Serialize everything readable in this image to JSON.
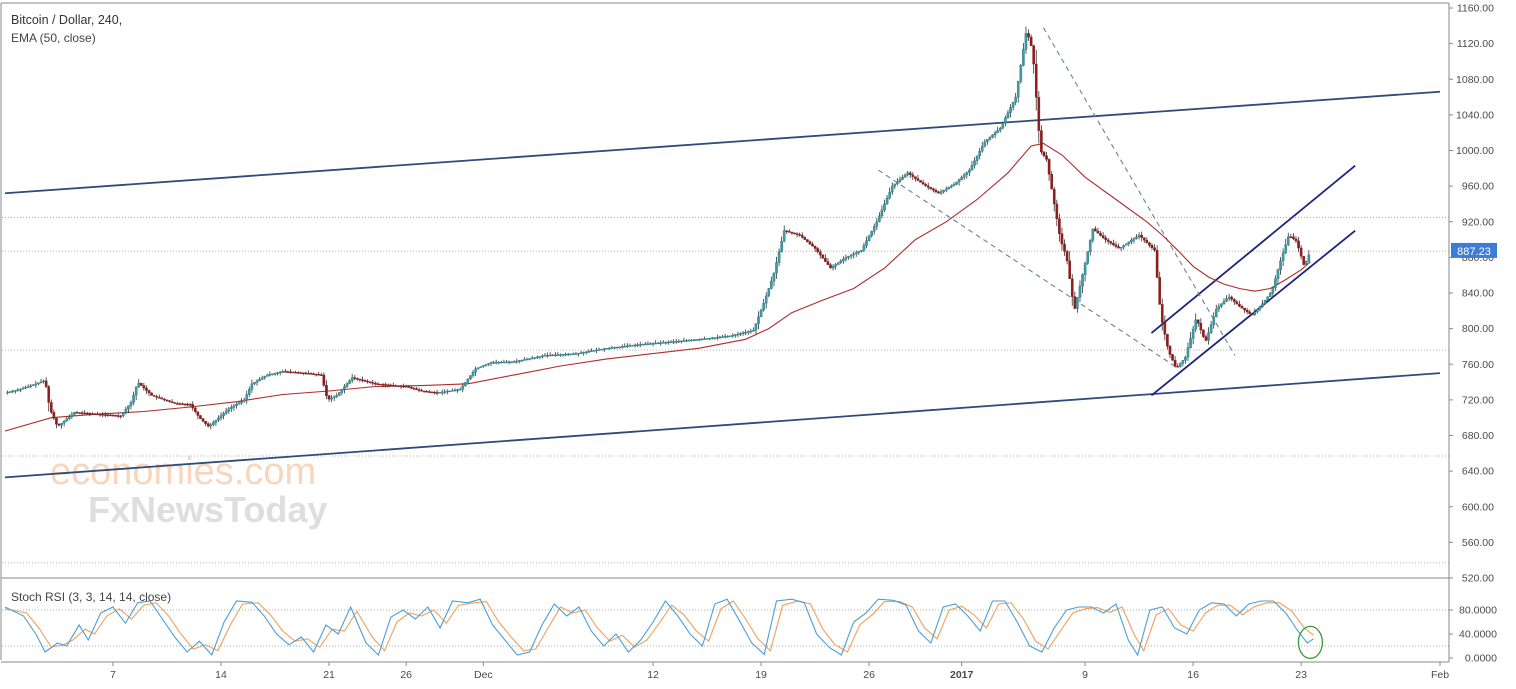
{
  "chart_data": {
    "type": "candlestick",
    "title": "Bitcoin / Dollar, 240,",
    "indicator_label": "EMA (50, close)",
    "price_axis": {
      "ticks": [
        "1160.00",
        "1120.00",
        "1080.00",
        "1040.00",
        "1000.00",
        "960.00",
        "920.00",
        "880.00",
        "840.00",
        "800.00",
        "760.00",
        "720.00",
        "680.00",
        "640.00",
        "600.00",
        "560.00",
        "520.00"
      ],
      "range": [
        520,
        1160
      ],
      "current_price_label": "887.23",
      "current_price": 887.23
    },
    "x_ticks": [
      {
        "label": "7",
        "day": 7
      },
      {
        "label": "14",
        "day": 14
      },
      {
        "label": "21",
        "day": 21
      },
      {
        "label": "26",
        "day": 26
      },
      {
        "label": "Dec",
        "day": 31
      },
      {
        "label": "12",
        "day": 42
      },
      {
        "label": "19",
        "day": 49
      },
      {
        "label": "26",
        "day": 56
      },
      {
        "label": "2017",
        "day": 62
      },
      {
        "label": "9",
        "day": 70
      },
      {
        "label": "16",
        "day": 77
      },
      {
        "label": "23",
        "day": 84
      },
      {
        "label": "Feb",
        "day": 93
      }
    ],
    "x_range_days": [
      0,
      93
    ],
    "horizontal_levels": [
      925,
      887,
      776,
      657,
      537
    ],
    "price_path": [
      [
        0,
        728
      ],
      [
        1,
        732
      ],
      [
        2,
        738
      ],
      [
        2.6,
        742
      ],
      [
        2.9,
        710
      ],
      [
        3.4,
        690
      ],
      [
        4.5,
        706
      ],
      [
        6,
        704
      ],
      [
        7.5,
        702
      ],
      [
        8.2,
        718
      ],
      [
        8.6,
        740
      ],
      [
        9.5,
        725
      ],
      [
        11,
        716
      ],
      [
        12,
        715
      ],
      [
        12.6,
        700
      ],
      [
        13.2,
        690
      ],
      [
        14.5,
        710
      ],
      [
        15.5,
        720
      ],
      [
        16,
        738
      ],
      [
        17,
        748
      ],
      [
        18,
        752
      ],
      [
        19.5,
        750
      ],
      [
        20.5,
        748
      ],
      [
        20.9,
        720
      ],
      [
        21.5,
        725
      ],
      [
        22.5,
        745
      ],
      [
        24,
        738
      ],
      [
        26,
        735
      ],
      [
        27,
        730
      ],
      [
        28,
        728
      ],
      [
        29.5,
        732
      ],
      [
        30.5,
        755
      ],
      [
        31.5,
        762
      ],
      [
        33,
        763
      ],
      [
        35,
        770
      ],
      [
        37,
        772
      ],
      [
        39,
        778
      ],
      [
        41,
        782
      ],
      [
        43,
        785
      ],
      [
        45,
        788
      ],
      [
        47,
        792
      ],
      [
        48.5,
        798
      ],
      [
        49.2,
        830
      ],
      [
        49.8,
        860
      ],
      [
        50.5,
        910
      ],
      [
        51.5,
        905
      ],
      [
        52.5,
        890
      ],
      [
        53.5,
        868
      ],
      [
        54.5,
        880
      ],
      [
        55.5,
        888
      ],
      [
        56.5,
        920
      ],
      [
        57.5,
        960
      ],
      [
        58.5,
        975
      ],
      [
        59.5,
        962
      ],
      [
        60.5,
        952
      ],
      [
        61.5,
        962
      ],
      [
        62.5,
        978
      ],
      [
        63.5,
        1010
      ],
      [
        64.5,
        1025
      ],
      [
        65.5,
        1060
      ],
      [
        66.2,
        1135
      ],
      [
        66.6,
        1112
      ],
      [
        67.1,
        1000
      ],
      [
        67.5,
        990
      ],
      [
        67.9,
        950
      ],
      [
        68.4,
        900
      ],
      [
        68.8,
        880
      ],
      [
        69.3,
        820
      ],
      [
        69.8,
        858
      ],
      [
        70.5,
        912
      ],
      [
        71.3,
        900
      ],
      [
        72.2,
        890
      ],
      [
        73.5,
        905
      ],
      [
        74.5,
        888
      ],
      [
        74.9,
        815
      ],
      [
        75.4,
        775
      ],
      [
        75.9,
        755
      ],
      [
        76.5,
        768
      ],
      [
        77.2,
        812
      ],
      [
        77.8,
        785
      ],
      [
        78.5,
        822
      ],
      [
        79.3,
        836
      ],
      [
        80,
        825
      ],
      [
        80.8,
        815
      ],
      [
        81.5,
        828
      ],
      [
        82.1,
        842
      ],
      [
        82.7,
        878
      ],
      [
        83.2,
        905
      ],
      [
        83.7,
        898
      ],
      [
        84.2,
        870
      ],
      [
        84.6,
        887
      ]
    ],
    "ema_path": [
      [
        0,
        685
      ],
      [
        3,
        700
      ],
      [
        6,
        704
      ],
      [
        9,
        707
      ],
      [
        12,
        712
      ],
      [
        15,
        718
      ],
      [
        18,
        726
      ],
      [
        21,
        730
      ],
      [
        24,
        735
      ],
      [
        27,
        736
      ],
      [
        30,
        738
      ],
      [
        33,
        748
      ],
      [
        36,
        758
      ],
      [
        39,
        766
      ],
      [
        42,
        772
      ],
      [
        45,
        778
      ],
      [
        48,
        788
      ],
      [
        49.5,
        800
      ],
      [
        51,
        818
      ],
      [
        53,
        832
      ],
      [
        55,
        845
      ],
      [
        57,
        868
      ],
      [
        59,
        900
      ],
      [
        61,
        920
      ],
      [
        63,
        945
      ],
      [
        65,
        975
      ],
      [
        66.5,
        1005
      ],
      [
        67.3,
        1008
      ],
      [
        68.5,
        995
      ],
      [
        70,
        970
      ],
      [
        72,
        945
      ],
      [
        74,
        920
      ],
      [
        75,
        905
      ],
      [
        76,
        888
      ],
      [
        77,
        870
      ],
      [
        78,
        858
      ],
      [
        79,
        850
      ],
      [
        80,
        845
      ],
      [
        81,
        842
      ],
      [
        82,
        845
      ],
      [
        83,
        855
      ],
      [
        84,
        866
      ],
      [
        84.6,
        875
      ]
    ],
    "trendlines": [
      {
        "style": "solid",
        "color": "#2e4b7a",
        "from": [
          0,
          952
        ],
        "to": [
          93,
          1066
        ]
      },
      {
        "style": "solid",
        "color": "#2e4b7a",
        "from": [
          0,
          633
        ],
        "to": [
          93,
          750
        ]
      },
      {
        "style": "solid",
        "color": "#1f2280",
        "from": [
          74.3,
          795
        ],
        "to": [
          87.5,
          983
        ]
      },
      {
        "style": "solid",
        "color": "#1f2280",
        "from": [
          74.3,
          725
        ],
        "to": [
          87.5,
          910
        ]
      },
      {
        "style": "dashed",
        "color": "#6b7fa3",
        "from": [
          56.6,
          978
        ],
        "to": [
          75.8,
          758
        ]
      },
      {
        "style": "dashed",
        "color": "#6b7fa3",
        "from": [
          67.3,
          1138
        ],
        "to": [
          79.7,
          770
        ]
      }
    ],
    "stoch_rsi": {
      "label": "Stoch RSI (3, 3, 14, 14, close)",
      "ticks": [
        "80.0000",
        "40.0000",
        "0.0000"
      ],
      "range": [
        0,
        100
      ],
      "bands": [
        80,
        20
      ],
      "k_color": "#4a9fd8",
      "d_color": "#f0a05a",
      "k_path": [
        [
          0,
          85
        ],
        [
          1.2,
          70
        ],
        [
          2,
          40
        ],
        [
          2.6,
          10
        ],
        [
          3.4,
          25
        ],
        [
          4,
          20
        ],
        [
          4.8,
          55
        ],
        [
          5.4,
          30
        ],
        [
          6.2,
          75
        ],
        [
          7,
          85
        ],
        [
          7.8,
          58
        ],
        [
          8.6,
          92
        ],
        [
          9.4,
          95
        ],
        [
          10.2,
          65
        ],
        [
          11,
          35
        ],
        [
          11.8,
          10
        ],
        [
          12.6,
          28
        ],
        [
          13.4,
          5
        ],
        [
          14.2,
          60
        ],
        [
          15,
          95
        ],
        [
          16,
          93
        ],
        [
          16.8,
          70
        ],
        [
          17.6,
          40
        ],
        [
          18.4,
          22
        ],
        [
          19.2,
          35
        ],
        [
          20,
          10
        ],
        [
          20.8,
          55
        ],
        [
          21.6,
          40
        ],
        [
          22.4,
          85
        ],
        [
          23.4,
          25
        ],
        [
          24.2,
          5
        ],
        [
          25,
          68
        ],
        [
          25.8,
          80
        ],
        [
          26.6,
          65
        ],
        [
          27.4,
          85
        ],
        [
          28.2,
          50
        ],
        [
          29,
          95
        ],
        [
          30,
          92
        ],
        [
          30.8,
          98
        ],
        [
          31.6,
          55
        ],
        [
          32.4,
          30
        ],
        [
          33.2,
          5
        ],
        [
          34,
          10
        ],
        [
          34.8,
          55
        ],
        [
          35.6,
          90
        ],
        [
          36.4,
          70
        ],
        [
          37.2,
          85
        ],
        [
          38,
          45
        ],
        [
          38.8,
          20
        ],
        [
          39.6,
          40
        ],
        [
          40.4,
          10
        ],
        [
          41.2,
          30
        ],
        [
          42,
          60
        ],
        [
          42.8,
          95
        ],
        [
          43.6,
          70
        ],
        [
          44.4,
          40
        ],
        [
          45.2,
          20
        ],
        [
          46,
          90
        ],
        [
          46.8,
          98
        ],
        [
          47.6,
          62
        ],
        [
          48.4,
          25
        ],
        [
          49.2,
          6
        ],
        [
          50,
          95
        ],
        [
          51,
          98
        ],
        [
          51.8,
          92
        ],
        [
          52.6,
          40
        ],
        [
          53.4,
          18
        ],
        [
          54.2,
          5
        ],
        [
          55,
          60
        ],
        [
          55.8,
          75
        ],
        [
          56.6,
          98
        ],
        [
          57.6,
          96
        ],
        [
          58.4,
          88
        ],
        [
          59.2,
          45
        ],
        [
          60,
          25
        ],
        [
          60.8,
          85
        ],
        [
          61.6,
          90
        ],
        [
          62.4,
          70
        ],
        [
          63.2,
          45
        ],
        [
          64,
          95
        ],
        [
          64.8,
          95
        ],
        [
          65.6,
          60
        ],
        [
          66.4,
          20
        ],
        [
          67.2,
          10
        ],
        [
          68,
          50
        ],
        [
          68.8,
          80
        ],
        [
          69.6,
          85
        ],
        [
          70.4,
          85
        ],
        [
          71.2,
          75
        ],
        [
          72,
          90
        ],
        [
          72.8,
          30
        ],
        [
          73.4,
          5
        ],
        [
          74.2,
          80
        ],
        [
          75,
          85
        ],
        [
          75.8,
          50
        ],
        [
          76.6,
          40
        ],
        [
          77.4,
          80
        ],
        [
          78.2,
          92
        ],
        [
          79,
          90
        ],
        [
          79.8,
          70
        ],
        [
          80.6,
          90
        ],
        [
          81.4,
          95
        ],
        [
          82.2,
          95
        ],
        [
          83,
          75
        ],
        [
          83.8,
          45
        ],
        [
          84.4,
          25
        ],
        [
          84.8,
          32
        ]
      ],
      "d_path": [
        [
          0,
          82
        ],
        [
          1.4,
          75
        ],
        [
          2.2,
          50
        ],
        [
          3,
          18
        ],
        [
          3.8,
          22
        ],
        [
          4.4,
          30
        ],
        [
          5.2,
          48
        ],
        [
          5.8,
          40
        ],
        [
          6.6,
          70
        ],
        [
          7.4,
          82
        ],
        [
          8.2,
          65
        ],
        [
          9,
          88
        ],
        [
          9.8,
          92
        ],
        [
          10.6,
          70
        ],
        [
          11.4,
          40
        ],
        [
          12.2,
          15
        ],
        [
          13,
          22
        ],
        [
          13.8,
          12
        ],
        [
          14.6,
          55
        ],
        [
          15.4,
          90
        ],
        [
          16.4,
          92
        ],
        [
          17.2,
          72
        ],
        [
          18,
          45
        ],
        [
          18.8,
          28
        ],
        [
          19.6,
          32
        ],
        [
          20.4,
          18
        ],
        [
          21.2,
          48
        ],
        [
          22,
          45
        ],
        [
          22.8,
          78
        ],
        [
          23.8,
          35
        ],
        [
          24.6,
          12
        ],
        [
          25.4,
          60
        ],
        [
          26.2,
          75
        ],
        [
          27,
          70
        ],
        [
          27.8,
          80
        ],
        [
          28.6,
          58
        ],
        [
          29.4,
          88
        ],
        [
          30.4,
          92
        ],
        [
          31.2,
          94
        ],
        [
          32,
          60
        ],
        [
          32.8,
          35
        ],
        [
          33.6,
          12
        ],
        [
          34.4,
          15
        ],
        [
          35.2,
          50
        ],
        [
          36,
          85
        ],
        [
          36.8,
          75
        ],
        [
          37.6,
          80
        ],
        [
          38.4,
          50
        ],
        [
          39.2,
          28
        ],
        [
          40,
          38
        ],
        [
          40.8,
          18
        ],
        [
          41.6,
          30
        ],
        [
          42.4,
          58
        ],
        [
          43.2,
          88
        ],
        [
          44,
          72
        ],
        [
          44.8,
          45
        ],
        [
          45.6,
          28
        ],
        [
          46.4,
          82
        ],
        [
          47.2,
          95
        ],
        [
          48,
          65
        ],
        [
          48.8,
          32
        ],
        [
          49.6,
          12
        ],
        [
          50.4,
          88
        ],
        [
          51.4,
          95
        ],
        [
          52.2,
          90
        ],
        [
          53,
          48
        ],
        [
          53.8,
          22
        ],
        [
          54.6,
          10
        ],
        [
          55.4,
          55
        ],
        [
          56.2,
          72
        ],
        [
          57,
          94
        ],
        [
          58,
          94
        ],
        [
          58.8,
          85
        ],
        [
          59.6,
          50
        ],
        [
          60.4,
          32
        ],
        [
          61.2,
          80
        ],
        [
          62,
          86
        ],
        [
          62.8,
          72
        ],
        [
          63.6,
          50
        ],
        [
          64.4,
          90
        ],
        [
          65.2,
          92
        ],
        [
          66,
          65
        ],
        [
          66.8,
          28
        ],
        [
          67.6,
          15
        ],
        [
          68.4,
          45
        ],
        [
          69.2,
          75
        ],
        [
          70,
          82
        ],
        [
          70.8,
          84
        ],
        [
          71.6,
          76
        ],
        [
          72.4,
          85
        ],
        [
          73.2,
          38
        ],
        [
          73.8,
          12
        ],
        [
          74.6,
          72
        ],
        [
          75.4,
          82
        ],
        [
          76.2,
          55
        ],
        [
          77,
          45
        ],
        [
          77.8,
          75
        ],
        [
          78.6,
          88
        ],
        [
          79.4,
          88
        ],
        [
          80.2,
          72
        ],
        [
          81,
          86
        ],
        [
          81.8,
          92
        ],
        [
          82.6,
          92
        ],
        [
          83.4,
          78
        ],
        [
          84.2,
          50
        ],
        [
          84.8,
          38
        ]
      ]
    },
    "annotation": {
      "type": "ellipse",
      "color": "#3a9a3a",
      "day": 84.6,
      "value": 26
    }
  },
  "watermark": {
    "line1": "economies.com",
    "line2": "FxNewsToday"
  }
}
